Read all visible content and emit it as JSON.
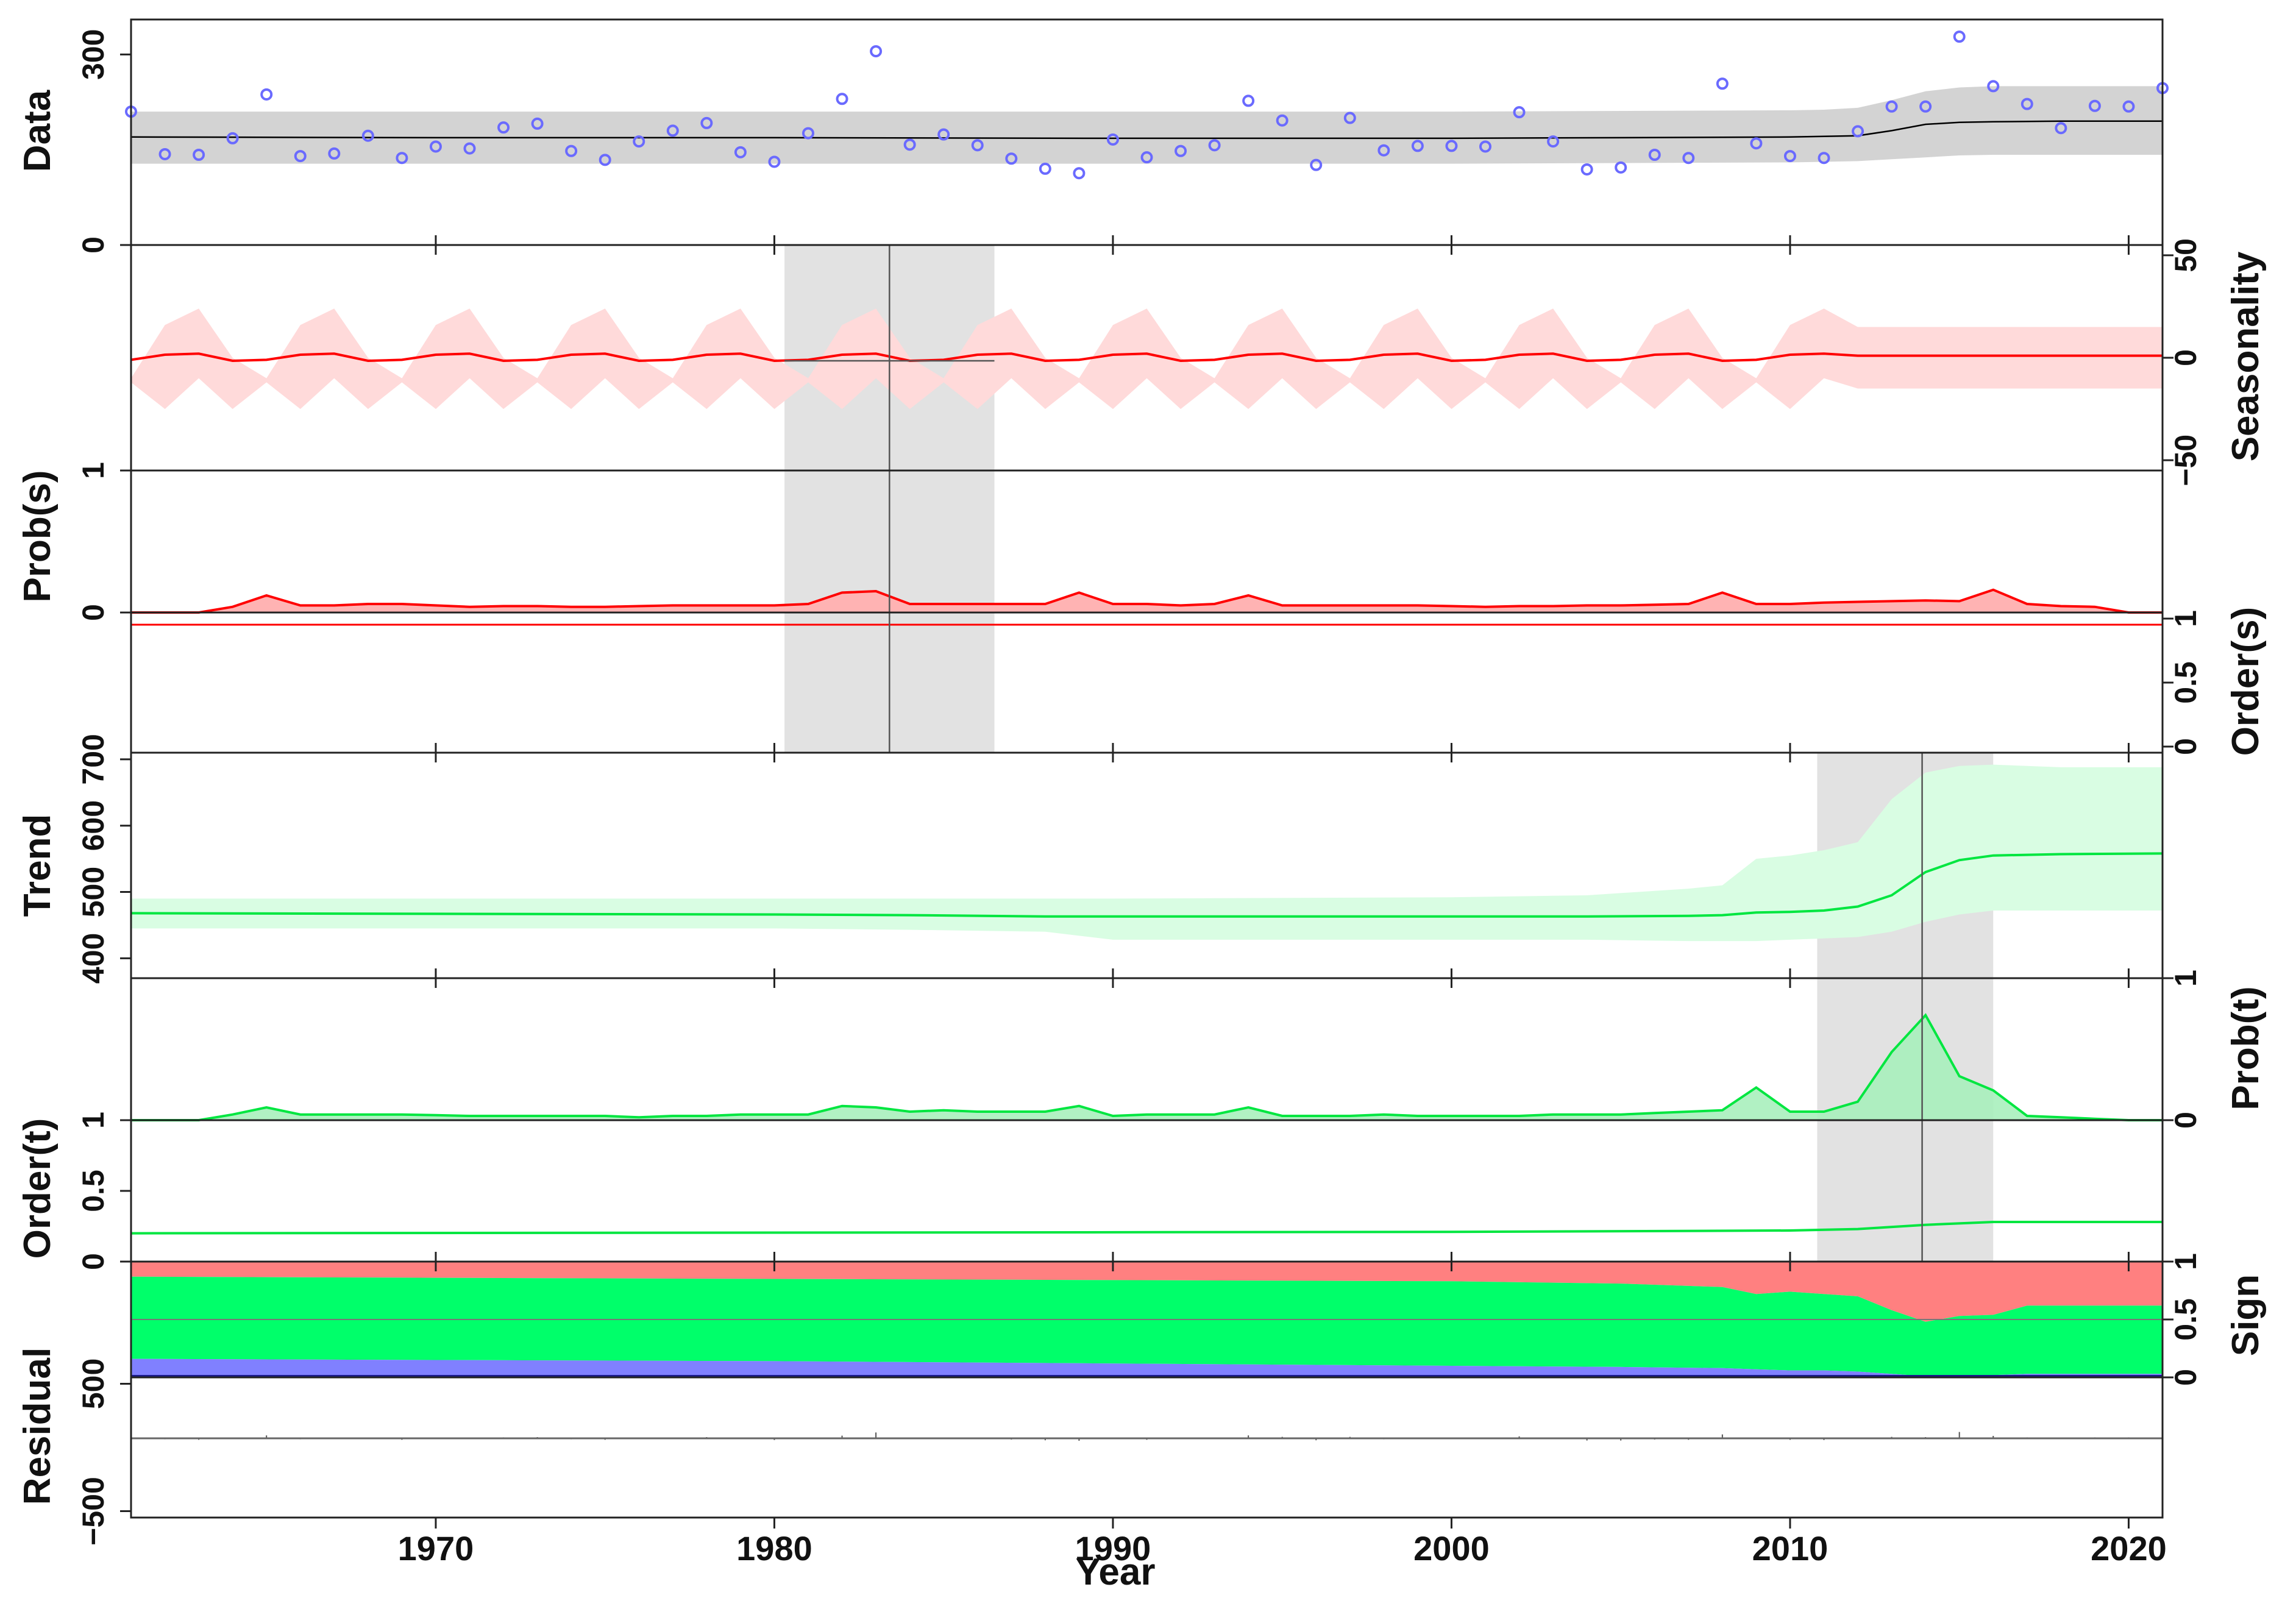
{
  "chart_data": {
    "type": "line",
    "xlabel": "Year",
    "xlim": [
      1961,
      2021
    ],
    "x_ticks": [
      1970,
      1980,
      1990,
      2000,
      2010,
      2020
    ],
    "x_tick_labels": [
      "1970",
      "1980",
      "1990",
      "2000",
      "2010",
      "2020"
    ],
    "colors": {
      "data_points": "#6a6aff",
      "season": "#ff0000",
      "season_band": "#ffdada",
      "trend": "#00e640",
      "trend_band": "#d9fde3",
      "cp_window": "#e2e2e2",
      "sign_pos": "#ff8080",
      "sign_zero": "#00ff6a",
      "sign_neg": "#8080ff"
    },
    "panels": {
      "data": {
        "ylabel": "Data",
        "ylim": [
          0,
          355
        ],
        "ticks": [
          0,
          300
        ],
        "tick_labels": [
          "0",
          "300"
        ],
        "years": [
          1961,
          1962,
          1963,
          1964,
          1965,
          1966,
          1967,
          1968,
          1969,
          1970,
          1971,
          1972,
          1973,
          1974,
          1975,
          1976,
          1977,
          1978,
          1979,
          1980,
          1981,
          1982,
          1983,
          1984,
          1985,
          1986,
          1987,
          1988,
          1989,
          1990,
          1991,
          1992,
          1993,
          1994,
          1995,
          1996,
          1997,
          1998,
          1999,
          2000,
          2001,
          2002,
          2003,
          2004,
          2005,
          2006,
          2007,
          2008,
          2009,
          2010,
          2011,
          2012,
          2013,
          2014,
          2015,
          2016,
          2017,
          2018,
          2019,
          2020,
          2021
        ],
        "values": [
          210,
          143,
          142,
          168,
          237,
          140,
          144,
          172,
          137,
          155,
          152,
          185,
          191,
          148,
          134,
          163,
          180,
          192,
          146,
          131,
          176,
          230,
          305,
          158,
          174,
          157,
          136,
          120,
          113,
          166,
          138,
          148,
          157,
          227,
          196,
          126,
          200,
          149,
          156,
          156,
          155,
          209,
          163,
          119,
          122,
          142,
          137,
          254,
          160,
          140,
          137,
          179,
          218,
          218,
          328,
          250,
          222,
          184,
          219,
          218,
          247
        ],
        "fit": {
          "x": [
            1961,
            1970,
            1980,
            1990,
            2000,
            2010,
            2011,
            2012,
            2013,
            2014,
            2015,
            2016,
            2018,
            2021
          ],
          "y": [
            170,
            169,
            169,
            168,
            168,
            170,
            171,
            172,
            180,
            190,
            193,
            194,
            195,
            195
          ]
        },
        "band_upper": [
          210,
          210,
          210,
          210,
          210,
          212,
          213,
          216,
          228,
          242,
          248,
          250,
          250,
          250
        ],
        "band_lower": [
          128,
          128,
          128,
          128,
          128,
          130,
          131,
          132,
          135,
          138,
          141,
          142,
          142,
          142
        ]
      },
      "seasonality": {
        "ylabel": "Seasonality",
        "ylim": [
          -55,
          55
        ],
        "ticks": [
          -50,
          0,
          50
        ],
        "tick_labels": [
          "−50",
          "0",
          "50"
        ],
        "period": 4,
        "pattern": [
          -1,
          1.5,
          2,
          -1.5
        ],
        "upper_pattern": [
          -10,
          16,
          24,
          0
        ],
        "lower_pattern": [
          -12,
          -25,
          -10,
          -25
        ],
        "late_years_from": 2012,
        "late_value": 1,
        "late_upper": 15,
        "late_lower": -15
      },
      "prob_s": {
        "ylabel": "Prob(s)",
        "ylim": [
          0,
          1
        ],
        "ticks": [
          0,
          1
        ],
        "tick_labels": [
          "0",
          "1"
        ],
        "x": [
          1961,
          1963,
          1964,
          1965,
          1966,
          1967,
          1968,
          1969,
          1970,
          1971,
          1972,
          1973,
          1974,
          1975,
          1976,
          1977,
          1978,
          1979,
          1980,
          1981,
          1982,
          1983,
          1984,
          1985,
          1986,
          1987,
          1988,
          1989,
          1990,
          1991,
          1992,
          1993,
          1994,
          1995,
          1996,
          1997,
          1998,
          1999,
          2000,
          2001,
          2002,
          2003,
          2004,
          2005,
          2006,
          2007,
          2008,
          2009,
          2010,
          2011,
          2012,
          2013,
          2014,
          2015,
          2016,
          2017,
          2018,
          2019,
          2020,
          2021
        ],
        "y": [
          0,
          0,
          0.04,
          0.12,
          0.05,
          0.05,
          0.06,
          0.06,
          0.05,
          0.04,
          0.045,
          0.045,
          0.04,
          0.04,
          0.045,
          0.05,
          0.05,
          0.05,
          0.05,
          0.06,
          0.14,
          0.15,
          0.06,
          0.06,
          0.06,
          0.06,
          0.06,
          0.14,
          0.06,
          0.06,
          0.05,
          0.06,
          0.12,
          0.05,
          0.05,
          0.05,
          0.05,
          0.05,
          0.045,
          0.04,
          0.045,
          0.045,
          0.05,
          0.05,
          0.055,
          0.06,
          0.14,
          0.06,
          0.06,
          0.07,
          0.075,
          0.08,
          0.085,
          0.08,
          0.16,
          0.06,
          0.045,
          0.04,
          0,
          0
        ]
      },
      "order_s": {
        "ylabel": "Order(s)",
        "ylim": [
          0,
          1
        ],
        "ticks": [
          0,
          0.5,
          1
        ],
        "tick_labels": [
          "0",
          "0.5",
          "1"
        ],
        "x": [
          1961,
          2021
        ],
        "y": [
          1,
          1
        ]
      },
      "trend": {
        "ylabel": "Trend",
        "ylim": [
          370,
          710
        ],
        "ticks": [
          400,
          500,
          600,
          700
        ],
        "tick_labels": [
          "400",
          "500",
          "600",
          "700"
        ],
        "x": [
          1961,
          1970,
          1980,
          1984,
          1988,
          1990,
          2000,
          2004,
          2007,
          2008,
          2009,
          2010,
          2011,
          2012,
          2013,
          2014,
          2015,
          2016,
          2018,
          2021
        ],
        "y": [
          468,
          467,
          466,
          465,
          463,
          463,
          463,
          463,
          464,
          465,
          469,
          470,
          472,
          478,
          495,
          530,
          548,
          555,
          557,
          558
        ],
        "upper": [
          490,
          490,
          490,
          490,
          490,
          490,
          492,
          495,
          505,
          510,
          550,
          555,
          563,
          575,
          640,
          680,
          690,
          692,
          688,
          688
        ],
        "lower": [
          445,
          445,
          445,
          443,
          440,
          428,
          428,
          428,
          426,
          426,
          426,
          428,
          430,
          432,
          440,
          455,
          466,
          472,
          472,
          472
        ]
      },
      "prob_t": {
        "ylabel": "Prob(t)",
        "ylim": [
          0,
          1
        ],
        "ticks": [
          0,
          1
        ],
        "tick_labels": [
          "0",
          "1"
        ],
        "x": [
          1961,
          1963,
          1964,
          1965,
          1966,
          1967,
          1968,
          1969,
          1970,
          1971,
          1972,
          1973,
          1974,
          1975,
          1976,
          1977,
          1978,
          1979,
          1980,
          1981,
          1982,
          1983,
          1984,
          1985,
          1986,
          1987,
          1988,
          1989,
          1990,
          1991,
          1992,
          1993,
          1994,
          1995,
          1996,
          1997,
          1998,
          1999,
          2000,
          2001,
          2002,
          2003,
          2004,
          2005,
          2006,
          2007,
          2008,
          2009,
          2010,
          2011,
          2012,
          2013,
          2014,
          2015,
          2016,
          2017,
          2018,
          2019,
          2020,
          2021
        ],
        "y": [
          0,
          0,
          0.04,
          0.09,
          0.04,
          0.04,
          0.04,
          0.04,
          0.035,
          0.03,
          0.03,
          0.03,
          0.03,
          0.03,
          0.02,
          0.03,
          0.03,
          0.04,
          0.04,
          0.04,
          0.1,
          0.09,
          0.06,
          0.07,
          0.06,
          0.06,
          0.06,
          0.1,
          0.03,
          0.04,
          0.04,
          0.04,
          0.09,
          0.03,
          0.03,
          0.03,
          0.04,
          0.03,
          0.03,
          0.03,
          0.03,
          0.04,
          0.04,
          0.04,
          0.05,
          0.06,
          0.07,
          0.23,
          0.06,
          0.06,
          0.13,
          0.48,
          0.74,
          0.31,
          0.21,
          0.03,
          0.02,
          0.01,
          0,
          0
        ]
      },
      "order_t": {
        "ylabel": "Order(t)",
        "ylim": [
          0,
          1
        ],
        "ticks": [
          0,
          0.5,
          1
        ],
        "tick_labels": [
          "0",
          "0.5",
          "1"
        ],
        "x": [
          1961,
          2000,
          2010,
          2012,
          2014,
          2016,
          2021
        ],
        "y": [
          0.2,
          0.21,
          0.22,
          0.23,
          0.26,
          0.28,
          0.28
        ]
      },
      "sign": {
        "ylabel": "Sign",
        "ylim": [
          0,
          1
        ],
        "ticks": [
          0,
          0.5,
          1
        ],
        "tick_labels": [
          "0",
          "0.5",
          "1"
        ],
        "x": [
          1961,
          1970,
          1980,
          1990,
          2000,
          2005,
          2008,
          2009,
          2010,
          2011,
          2012,
          2013,
          2014,
          2015,
          2016,
          2017,
          2021
        ],
        "pos": [
          0.13,
          0.14,
          0.15,
          0.16,
          0.17,
          0.19,
          0.22,
          0.28,
          0.26,
          0.28,
          0.3,
          0.42,
          0.52,
          0.47,
          0.46,
          0.38,
          0.38
        ],
        "neg": [
          0.16,
          0.15,
          0.14,
          0.12,
          0.1,
          0.09,
          0.08,
          0.07,
          0.06,
          0.06,
          0.05,
          0.03,
          0.01,
          0.01,
          0.02,
          0.03,
          0.03
        ]
      },
      "residual": {
        "ylabel": "Residual",
        "ylim": [
          -550,
          550
        ],
        "ticks": [
          -500,
          500
        ],
        "tick_labels": [
          "−500",
          "500"
        ],
        "x": [
          1961,
          1962,
          1963,
          1964,
          1965,
          1966,
          1967,
          1968,
          1969,
          1970,
          1971,
          1972,
          1973,
          1974,
          1975,
          1976,
          1977,
          1978,
          1979,
          1980,
          1981,
          1982,
          1983,
          1984,
          1985,
          1986,
          1987,
          1988,
          1989,
          1990,
          1991,
          1992,
          1993,
          1994,
          1995,
          1996,
          1997,
          1998,
          1999,
          2000,
          2001,
          2002,
          2003,
          2004,
          2005,
          2006,
          2007,
          2008,
          2009,
          2010,
          2011,
          2012,
          2013,
          2014,
          2015,
          2016,
          2017,
          2018,
          2019,
          2020,
          2021
        ],
        "y": [
          40,
          -20,
          -30,
          -10,
          60,
          -20,
          -15,
          10,
          -30,
          -10,
          -15,
          20,
          25,
          -20,
          -30,
          -5,
          15,
          25,
          -15,
          -35,
          10,
          55,
          120,
          -10,
          10,
          -5,
          -25,
          -40,
          -50,
          0,
          -30,
          -15,
          -10,
          60,
          30,
          -40,
          30,
          -20,
          -10,
          -10,
          -10,
          40,
          -5,
          -45,
          -45,
          -25,
          -30,
          80,
          -10,
          -30,
          -35,
          0,
          30,
          25,
          130,
          50,
          20,
          -15,
          20,
          20,
          45
        ]
      },
      "cp_season": {
        "year": 1983.4,
        "from": 1980.3,
        "to": 1986.5
      },
      "cp_trend": {
        "year": 2013.9,
        "from": 2010.8,
        "to": 2016.0
      }
    }
  }
}
